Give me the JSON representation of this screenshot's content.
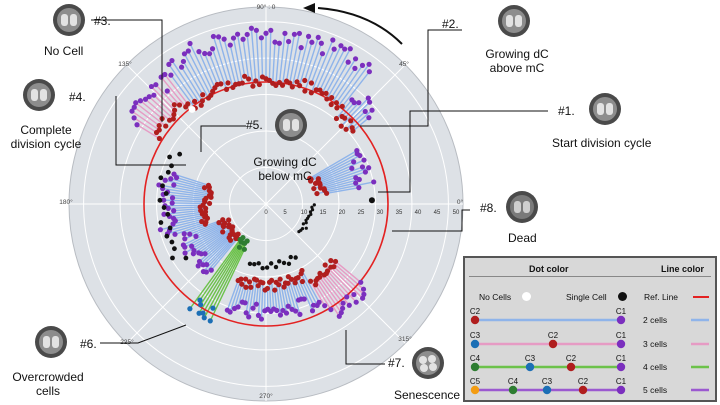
{
  "diagram": {
    "angle_labels": {
      "top": "90° : 0",
      "upper_left": "135°",
      "upper_right": "45°",
      "left": "180°",
      "right": "0°",
      "lower_left": "225°",
      "lower_right": "315°",
      "bottom": "270°"
    },
    "radial_ticks": [
      "0",
      "5",
      "10",
      "15",
      "20",
      "25",
      "30",
      "35",
      "40",
      "45",
      "50"
    ],
    "colors": {
      "polar_background": "#dde1e6",
      "ref_line": "#e32222",
      "line_2_cells": "#8fb4ea",
      "line_3_cells": "#e69bc4",
      "line_4_cells": "#6cc24a",
      "line_5_cells": "#9b59d0",
      "dot_single_cell": "#111111",
      "dot_no_cells": "#ffffff",
      "dot_c1": "#7b2fbe",
      "dot_c2": "#b01e1e",
      "dot_c3": "#1c6fb5",
      "dot_c4": "#2e7d32",
      "dot_c5": "#f39c12"
    }
  },
  "callouts": [
    {
      "num": "#1.",
      "label": "Start division cycle"
    },
    {
      "num": "#2.",
      "label": "Growing dC above mC"
    },
    {
      "num": "#3.",
      "label": "No Cell"
    },
    {
      "num": "#4.",
      "label": "Complete division cycle"
    },
    {
      "num": "#5.",
      "label": "Growing dC below mC"
    },
    {
      "num": "#6.",
      "label": "Overcrowded cells"
    },
    {
      "num": "#7.",
      "label": "Senescence"
    },
    {
      "num": "#8.",
      "label": "Dead"
    }
  ],
  "legend": {
    "dot_color_title": "Dot color",
    "line_color_title": "Line color",
    "no_cells": "No Cells",
    "single_cell": "Single Cell",
    "ref_line": "Ref. Line",
    "rows": [
      {
        "label": "2 cells",
        "tags": [
          "C2",
          "C1"
        ]
      },
      {
        "label": "3 cells",
        "tags": [
          "C3",
          "C2",
          "C1"
        ]
      },
      {
        "label": "4 cells",
        "tags": [
          "C4",
          "C3",
          "C2",
          "C1"
        ]
      },
      {
        "label": "5 cells",
        "tags": [
          "C5",
          "C4",
          "C3",
          "C2",
          "C1"
        ]
      }
    ]
  }
}
